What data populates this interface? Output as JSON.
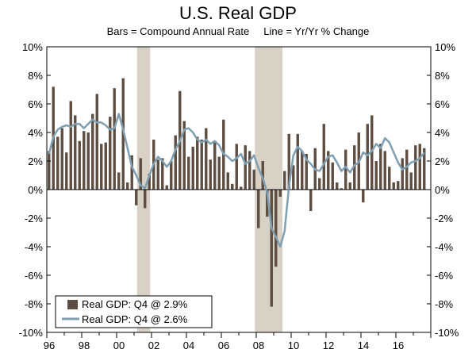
{
  "chart_data": {
    "type": "bar",
    "title": "U.S. Real GDP",
    "subtitle": "Bars = Compound Annual Rate     Line = Yr/Yr % Change",
    "ylim": [
      -10,
      10
    ],
    "y_ticks": [
      "-10%",
      "-8%",
      "-6%",
      "-4%",
      "-2%",
      "0%",
      "2%",
      "4%",
      "6%",
      "8%",
      "10%"
    ],
    "y_tick_values": [
      -10,
      -8,
      -6,
      -4,
      -2,
      0,
      2,
      4,
      6,
      8,
      10
    ],
    "x_range": [
      1996,
      2018
    ],
    "x_ticks": [
      "96",
      "98",
      "00",
      "02",
      "04",
      "06",
      "08",
      "10",
      "12",
      "14",
      "16"
    ],
    "x_tick_values": [
      1996,
      1998,
      2000,
      2002,
      2004,
      2006,
      2008,
      2010,
      2012,
      2014,
      2016
    ],
    "recessions": [
      {
        "start": 2001.17,
        "end": 2001.92
      },
      {
        "start": 2007.92,
        "end": 2009.5
      }
    ],
    "legend": [
      {
        "label": "Real GDP: Q4 @ 2.9%",
        "kind": "bar"
      },
      {
        "label": "Real GDP: Q4 @ 2.6%",
        "kind": "line"
      }
    ],
    "colors": {
      "bar": "#5e4e42",
      "line": "#7f9fb3",
      "recession": "#d8d1c6"
    },
    "series": [
      {
        "name": "Compound Annual Rate",
        "kind": "bar",
        "start": 1996.0,
        "step": 0.25,
        "values": [
          2.7,
          7.2,
          3.7,
          4.3,
          2.6,
          6.2,
          5.2,
          3.4,
          4.1,
          4.0,
          5.3,
          6.7,
          3.2,
          3.3,
          5.1,
          7.1,
          1.2,
          7.8,
          0.5,
          2.4,
          -1.1,
          2.2,
          -1.3,
          1.1,
          3.5,
          2.1,
          2.2,
          0.3,
          2.0,
          3.8,
          6.9,
          4.8,
          2.3,
          3.0,
          3.7,
          3.5,
          4.3,
          2.1,
          3.4,
          2.3,
          4.9,
          1.2,
          0.4,
          3.2,
          0.2,
          3.1,
          2.7,
          1.4,
          -2.7,
          2.0,
          -1.9,
          -8.2,
          -5.4,
          -0.5,
          1.3,
          3.9,
          1.7,
          3.9,
          2.7,
          2.5,
          -1.5,
          2.9,
          0.8,
          4.6,
          2.7,
          1.9,
          0.5,
          0.1,
          2.8,
          0.5,
          3.1,
          4.0,
          -0.9,
          4.6,
          5.2,
          2.0,
          3.2,
          2.7,
          1.6,
          0.5,
          0.6,
          2.2,
          2.8,
          1.2,
          3.1,
          3.2,
          2.9
        ]
      },
      {
        "name": "Yr/Yr % Change",
        "kind": "line",
        "start": 1996.0,
        "step": 0.25,
        "values": [
          2.5,
          3.7,
          4.2,
          4.4,
          4.5,
          4.4,
          4.6,
          4.6,
          4.3,
          4.6,
          4.9,
          4.7,
          4.7,
          4.5,
          4.2,
          4.3,
          5.3,
          4.2,
          2.9,
          1.6,
          1.0,
          0.3,
          0.1,
          1.0,
          1.8,
          2.3,
          2.0,
          1.6,
          2.0,
          2.8,
          3.4,
          4.2,
          4.3,
          4.0,
          3.5,
          3.3,
          3.5,
          3.2,
          3.4,
          3.1,
          2.5,
          2.3,
          2.0,
          2.2,
          2.5,
          1.8,
          2.0,
          2.4,
          1.5,
          0.8,
          -0.2,
          -2.7,
          -3.3,
          -4.0,
          -2.9,
          0.2,
          2.4,
          3.0,
          2.7,
          2.1,
          1.8,
          1.4,
          1.3,
          1.8,
          2.3,
          2.4,
          1.9,
          1.3,
          1.6,
          1.2,
          1.7,
          1.9,
          2.6,
          2.4,
          2.7,
          3.2,
          2.9,
          3.6,
          3.3,
          2.6,
          1.9,
          1.4,
          1.6,
          1.9,
          2.0,
          2.2,
          2.6
        ]
      }
    ]
  }
}
